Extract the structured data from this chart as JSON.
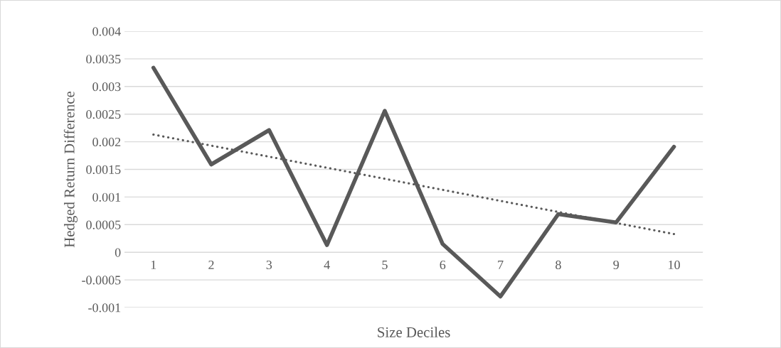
{
  "chart_data": {
    "type": "line",
    "xlabel": "Size Deciles",
    "ylabel": "Hedged Return Difference",
    "categories": [
      "1",
      "2",
      "3",
      "4",
      "5",
      "6",
      "7",
      "8",
      "9",
      "10"
    ],
    "series": [
      {
        "color": "#595959",
        "values": [
          0.00334,
          0.00159,
          0.00221,
          0.00013,
          0.00256,
          0.00015,
          -0.0008,
          0.00069,
          0.00054,
          0.00191
        ],
        "line_style": "solid"
      },
      {
        "type": "line",
        "color": "#595959",
        "values": [
          0.00213,
          0.00193,
          0.00173,
          0.00153,
          0.00133,
          0.00113,
          0.00093,
          0.00073,
          0.00053,
          0.00033
        ],
        "line_style": "dotted"
      }
    ],
    "ylim": [
      -0.001,
      0.004
    ],
    "yticks": [
      -0.001,
      -0.0005,
      0,
      0.0005,
      0.001,
      0.0015,
      0.002,
      0.0025,
      0.003,
      0.0035,
      0.004
    ],
    "grid": "y",
    "legend": false,
    "marker": "none"
  }
}
